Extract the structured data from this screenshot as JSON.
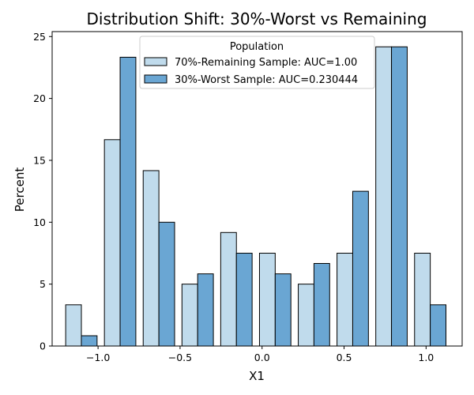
{
  "chart_data": {
    "type": "bar",
    "title": "Distribution Shift: 30%-Worst vs Remaining",
    "xlabel": "X1",
    "ylabel": "Percent",
    "xlim": [
      -1.28,
      1.22
    ],
    "ylim": [
      0,
      25.4
    ],
    "xticks": [
      {
        "value": -1.0,
        "label": "−1.0"
      },
      {
        "value": -0.5,
        "label": "−0.5"
      },
      {
        "value": 0.0,
        "label": "0.0"
      },
      {
        "value": 0.5,
        "label": "0.5"
      },
      {
        "value": 1.0,
        "label": "1.0"
      }
    ],
    "yticks": [
      0,
      5,
      10,
      15,
      20,
      25
    ],
    "bin_width": 0.2364,
    "bin_centers": [
      -1.1018,
      -0.8655,
      -0.6291,
      -0.3927,
      -0.1564,
      0.08,
      0.3164,
      0.5527,
      0.7891,
      1.0255
    ],
    "legend": {
      "title": "Population",
      "placement": "upper center"
    },
    "series": [
      {
        "name": "70%-Remaining Sample: AUC=1.00",
        "color": "#c0dbec",
        "values": [
          3.33,
          16.67,
          14.17,
          5.0,
          9.17,
          7.5,
          5.0,
          7.5,
          24.17,
          7.5
        ]
      },
      {
        "name": "30%-Worst Sample: AUC=0.230444",
        "color": "#6aa6d3",
        "values": [
          0.83,
          23.33,
          10.0,
          5.83,
          7.5,
          5.83,
          6.67,
          12.5,
          24.17,
          3.33
        ]
      }
    ]
  }
}
